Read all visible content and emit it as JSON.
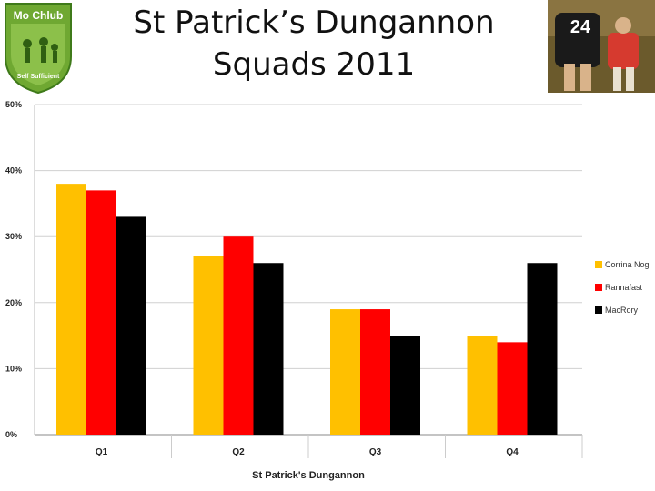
{
  "header": {
    "title_line1": "St Patrick’s Dungannon",
    "title_line2": "Squads 2011",
    "logo_text_top": "Mo Chlub",
    "logo_text_bottom": "Self Sufficient",
    "photo_jersey_number": "24"
  },
  "colors": {
    "logo_green": "#6fa832",
    "photo_bg": "#6b5a2c",
    "series_1": "#ffc000",
    "series_2": "#ff0000",
    "series_3": "#000000"
  },
  "chart_data": {
    "type": "bar",
    "categories": [
      "Q1",
      "Q2",
      "Q3",
      "Q4"
    ],
    "series": [
      {
        "name": "Corrina Nog",
        "values": [
          38,
          27,
          19,
          15
        ],
        "color": "#ffc000"
      },
      {
        "name": "Rannafast",
        "values": [
          37,
          30,
          19,
          14
        ],
        "color": "#ff0000"
      },
      {
        "name": "MacRory",
        "values": [
          33,
          26,
          15,
          26
        ],
        "color": "#000000"
      }
    ],
    "y_ticks": [
      "0%",
      "10%",
      "20%",
      "30%",
      "40%",
      "50%"
    ],
    "ylim": [
      0,
      50
    ],
    "xlabel": "St Patrick's Dungannon",
    "ylabel": "",
    "grid": true,
    "legend_position": "right"
  }
}
